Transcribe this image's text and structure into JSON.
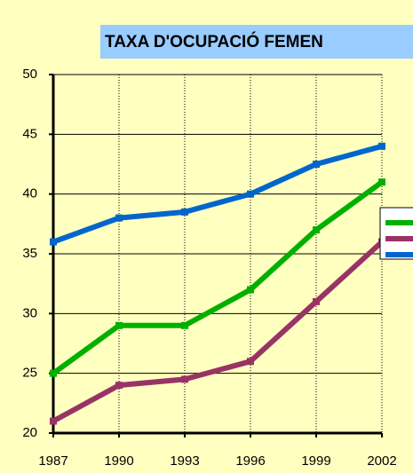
{
  "chart_data": {
    "type": "line",
    "title": "TAXA D'OCUPACIÓ FEMEN",
    "categories": [
      "1987",
      "1990",
      "1993",
      "1996",
      "1999",
      "2002"
    ],
    "series": [
      {
        "color": "#0066cc",
        "values": [
          36,
          38,
          38.5,
          40,
          42.5,
          44
        ]
      },
      {
        "color": "#00b000",
        "values": [
          25,
          29,
          29,
          32,
          37,
          41
        ]
      },
      {
        "color": "#993366",
        "values": [
          21,
          24,
          24.5,
          26,
          31,
          36
        ]
      }
    ],
    "ylim": [
      20,
      50
    ],
    "yticks": [
      20,
      25,
      30,
      35,
      40,
      45,
      50
    ],
    "grid": true
  }
}
